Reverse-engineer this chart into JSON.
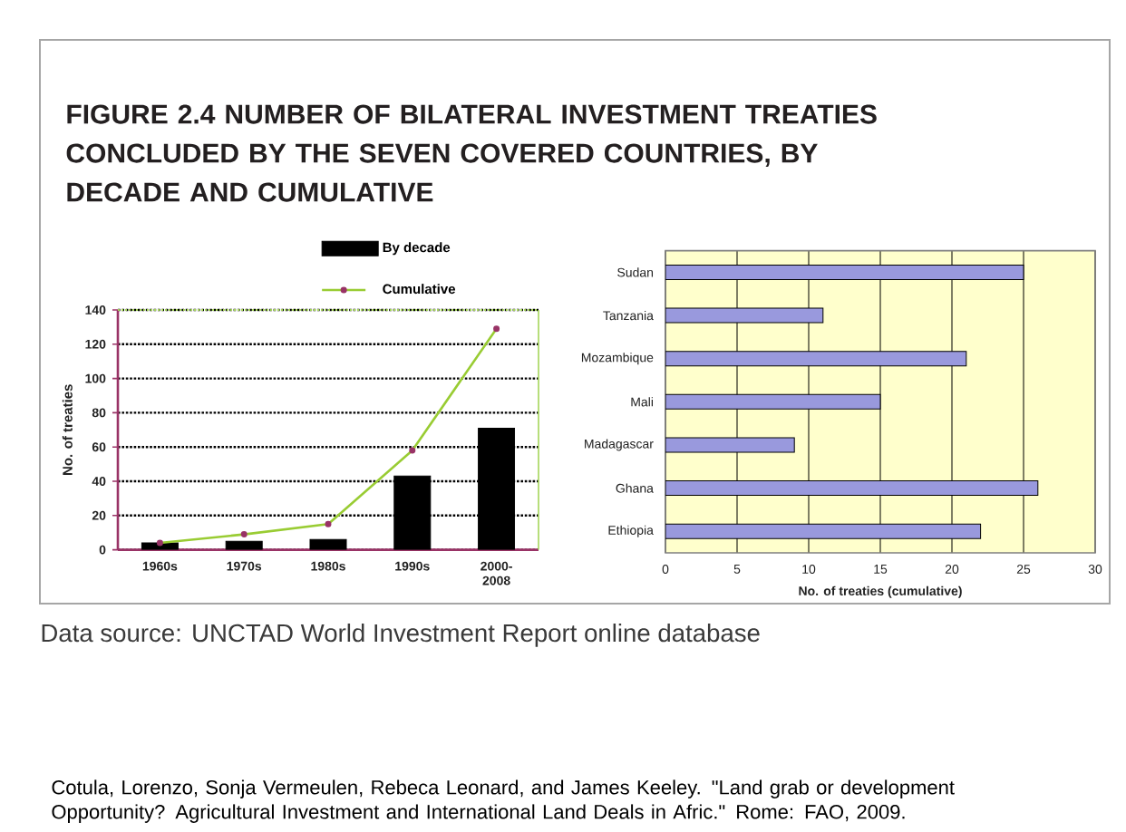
{
  "chart_data": [
    {
      "type": "bar",
      "title": "FIGURE 2.4 NUMBER OF BILATERAL INVESTMENT TREATIES CONCLUDED BY THE SEVEN COVERED COUNTRIES, BY DECADE AND CUMULATIVE",
      "categories": [
        "1960s",
        "1970s",
        "1980s",
        "1990s",
        "2000-2008"
      ],
      "series": [
        {
          "name": "By decade",
          "color": "#000000",
          "values": [
            4,
            5,
            6,
            43,
            71
          ]
        },
        {
          "name": "Cumulative",
          "type": "line",
          "color": "#99cc33",
          "marker": "circle",
          "values": [
            4,
            9,
            15,
            58,
            129
          ]
        }
      ],
      "ylabel": "No. of treaties",
      "ylim": [
        0,
        140
      ],
      "yticks": [
        0,
        20,
        40,
        60,
        80,
        100,
        120,
        140
      ],
      "grid": "y",
      "legend": "top",
      "annotations": [
        "Data source: UNCTAD World Investment Report online database",
        "Cotula, Lorenzo, Sonja Vermeulen, Rebeca Leonard, and James Keeley. \"Land grab or development Opportunity? Agricultural Investment and International Land Deals in Afric.\" Rome: FAO, 2009."
      ]
    },
    {
      "type": "bar",
      "orientation": "horizontal",
      "categories": [
        "Sudan",
        "Tanzania",
        "Mozambique",
        "Mali",
        "Madagascar",
        "Ghana",
        "Ethiopia"
      ],
      "values": [
        25,
        11,
        21,
        15,
        9,
        26,
        22
      ],
      "color": "#9999dd",
      "xlabel": "No. of treaties (cumulative)",
      "xlim": [
        0,
        30
      ],
      "xticks": [
        0,
        5,
        10,
        15,
        20,
        25,
        30
      ],
      "grid": "x"
    }
  ]
}
